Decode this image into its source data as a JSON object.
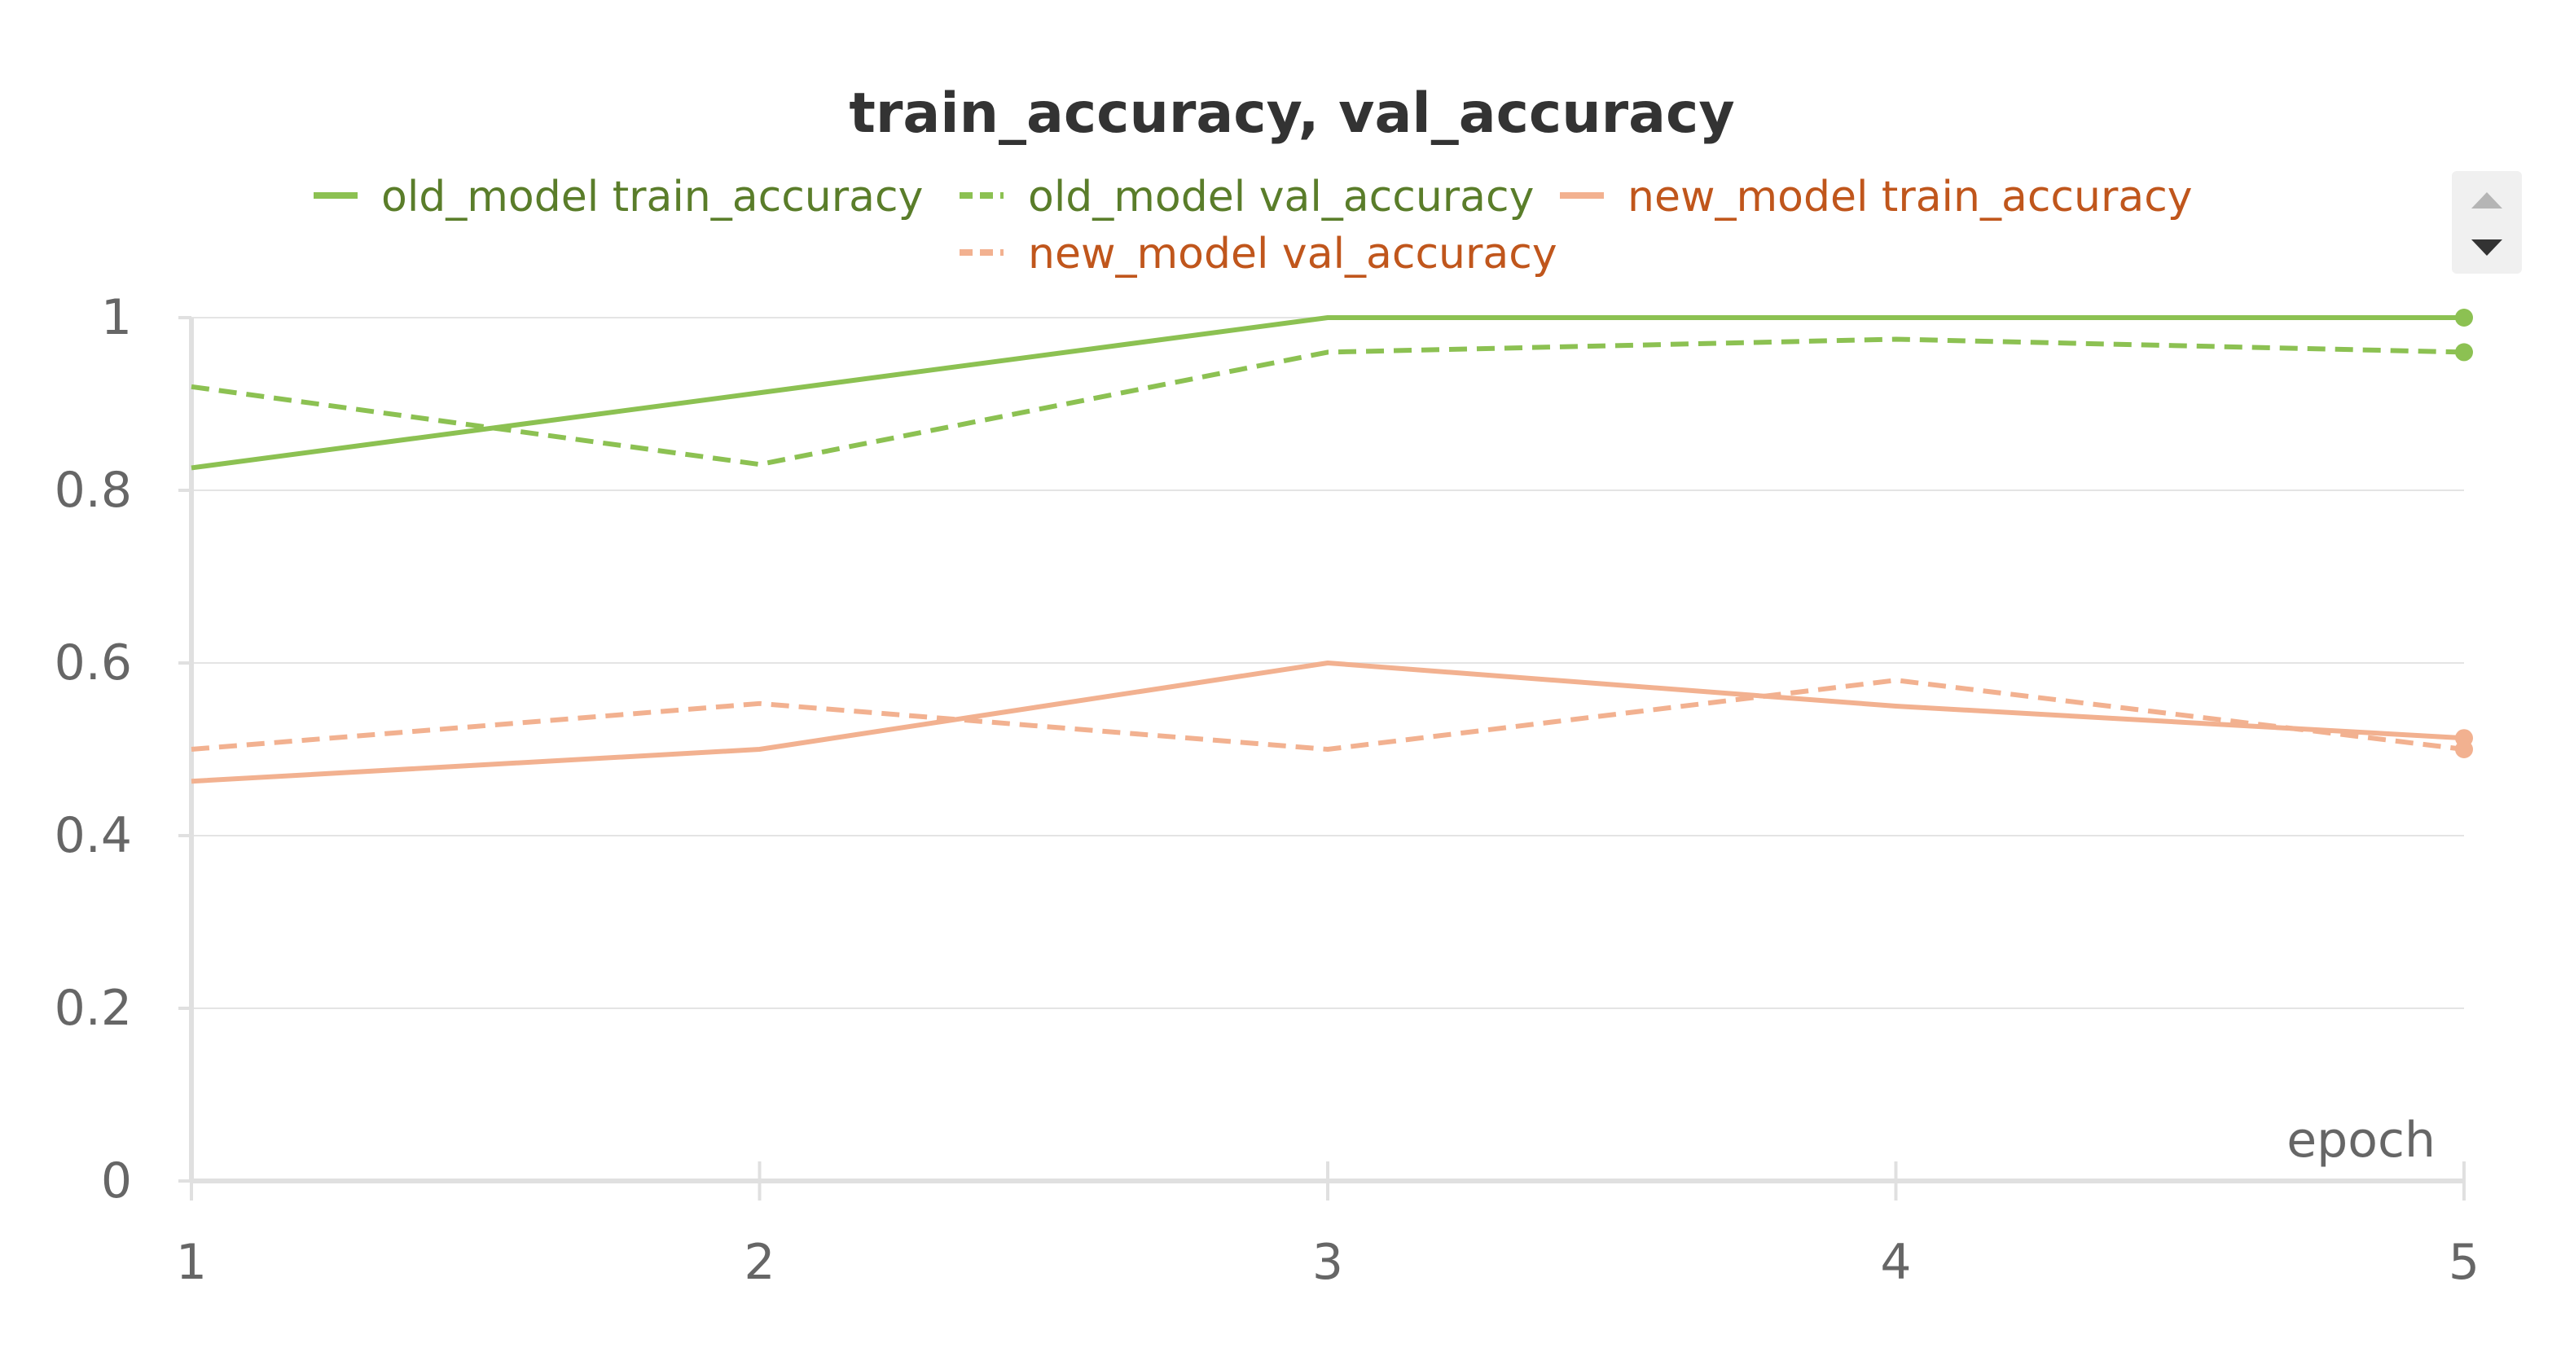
{
  "chart_data": {
    "type": "line",
    "title": "train_accuracy, val_accuracy",
    "xlabel": "epoch",
    "ylabel": "",
    "x": [
      1,
      2,
      3,
      4,
      5
    ],
    "xlim": [
      1,
      5
    ],
    "ylim": [
      0,
      1
    ],
    "x_ticks": [
      "1",
      "2",
      "3",
      "4",
      "5"
    ],
    "y_ticks": [
      "0",
      "0.2",
      "0.4",
      "0.6",
      "0.8",
      "1"
    ],
    "y_tick_values": [
      0,
      0.2,
      0.4,
      0.6,
      0.8,
      1
    ],
    "grid": "horizontal",
    "legend_position": "top",
    "series": [
      {
        "name": "old_model train_accuracy",
        "values": [
          0.826,
          0.913,
          1.0,
          1.0,
          1.0
        ],
        "color": "#8cc152",
        "label_color": "#5a7d2a",
        "dash": "solid"
      },
      {
        "name": "old_model val_accuracy",
        "values": [
          0.92,
          0.83,
          0.96,
          0.975,
          0.96
        ],
        "color": "#8cc152",
        "label_color": "#5a7d2a",
        "dash": "dashed"
      },
      {
        "name": "new_model train_accuracy",
        "values": [
          0.463,
          0.5,
          0.6,
          0.55,
          0.513
        ],
        "color": "#f2b190",
        "label_color": "#c0561c",
        "dash": "solid"
      },
      {
        "name": "new_model val_accuracy",
        "values": [
          0.5,
          0.553,
          0.5,
          0.58,
          0.5
        ],
        "color": "#f2b190",
        "label_color": "#c0561c",
        "dash": "dashed"
      }
    ]
  },
  "legend_scroll": {
    "up_icon": "triangle-up-icon",
    "down_icon": "triangle-down-icon"
  }
}
